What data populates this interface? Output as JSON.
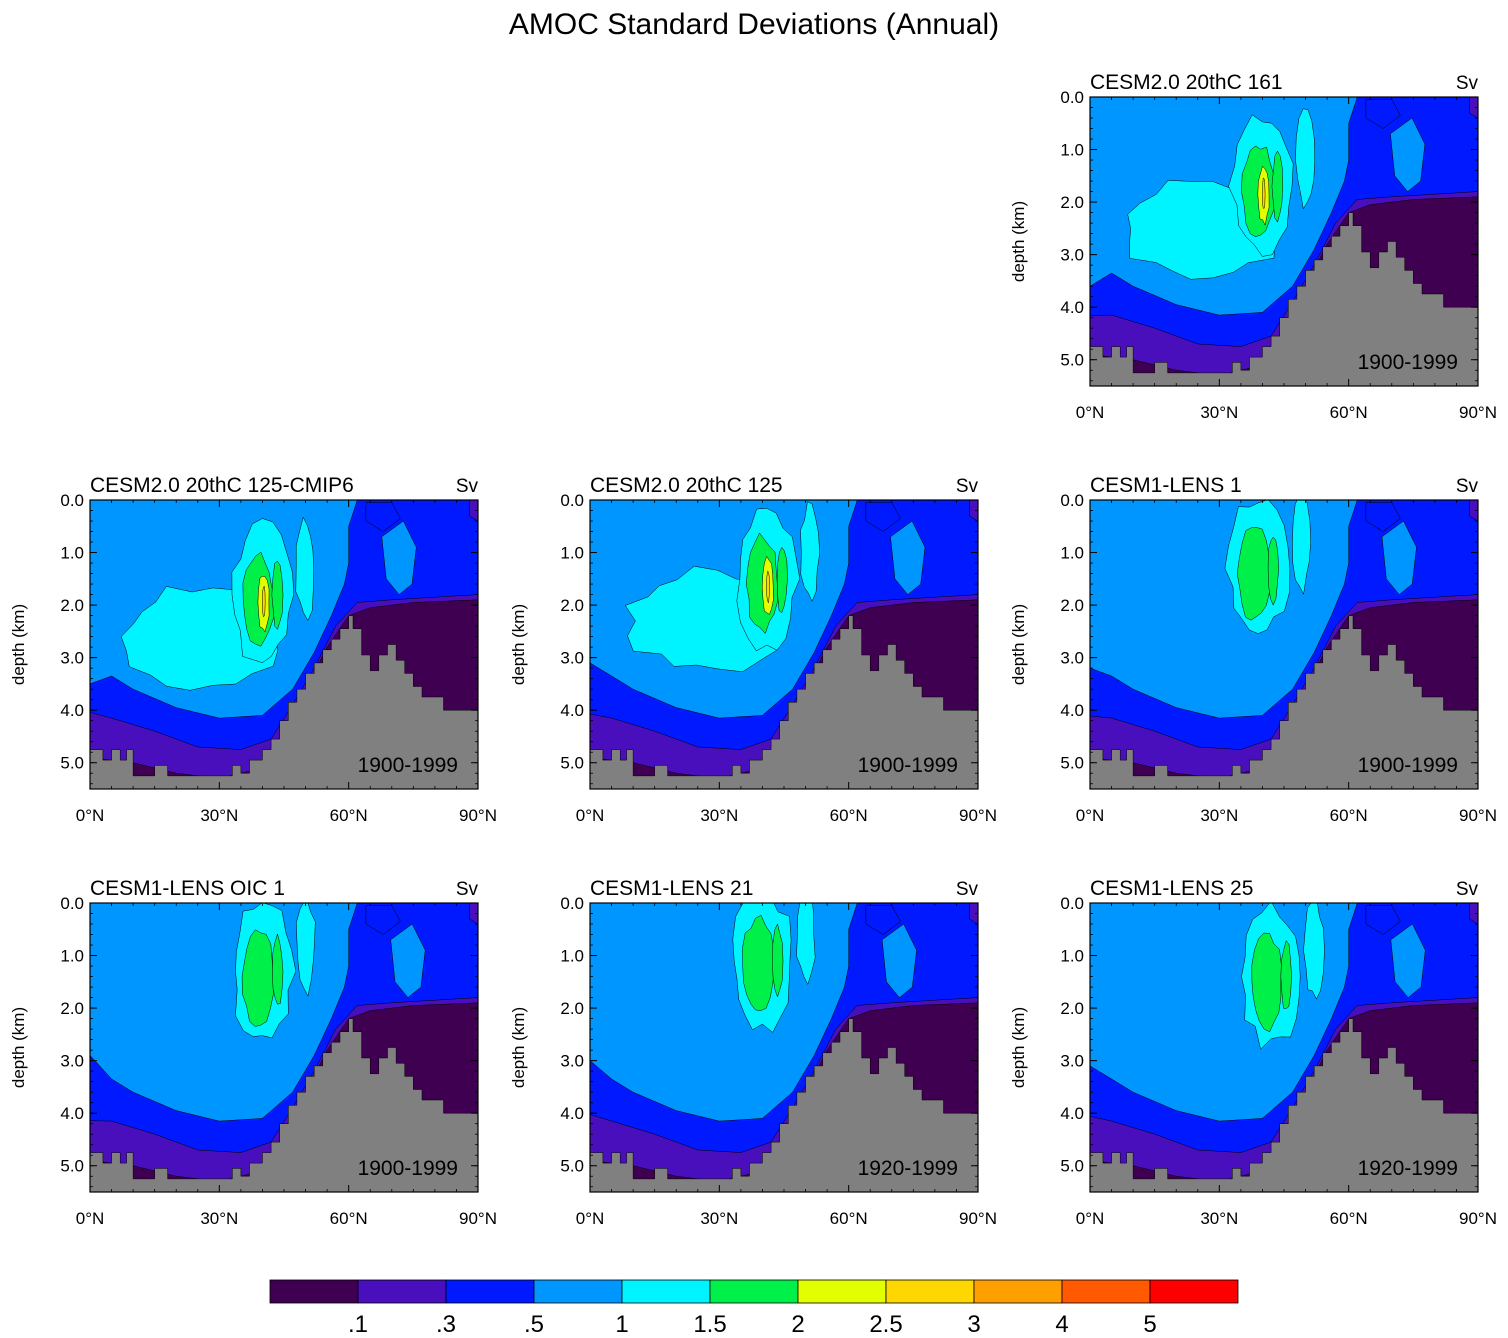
{
  "chart_data": {
    "type": "contour",
    "title": "AMOC Standard Deviations (Annual)",
    "units": "Sv",
    "xlabel": "",
    "ylabel": "depth (km)",
    "xlim": [
      0,
      90
    ],
    "ylim": [
      0,
      5.5
    ],
    "x_ticks": [
      "0°N",
      "30°N",
      "60°N",
      "90°N"
    ],
    "y_ticks": [
      "0.0",
      "1.0",
      "2.0",
      "3.0",
      "4.0",
      "5.0"
    ],
    "colorbar": {
      "levels": [
        ".1",
        ".3",
        ".5",
        "1",
        "1.5",
        "2",
        "2.5",
        "3",
        "4",
        "5"
      ],
      "colors": [
        "#3f0052",
        "#4a0fbd",
        "#0019ff",
        "#0096ff",
        "#00f4ff",
        "#00f04a",
        "#e1ff00",
        "#ffd700",
        "#ffa000",
        "#ff5a00",
        "#ff0000"
      ]
    },
    "land_color": "#808080",
    "panels": [
      {
        "name": "CESM2.0 20thC 161",
        "period": "1900-1999",
        "row": 0,
        "col": 2,
        "peak_lat": 40,
        "peak_depth": 1.8,
        "peak_sd": 2.5
      },
      {
        "name": "CESM2.0 20thC 125-CMIP6",
        "period": "1900-1999",
        "row": 1,
        "col": 0,
        "peak_lat": 40,
        "peak_depth": 1.9,
        "peak_sd": 2.5
      },
      {
        "name": "CESM2.0 20thC 125",
        "period": "1900-1999",
        "row": 1,
        "col": 1,
        "peak_lat": 41,
        "peak_depth": 1.6,
        "peak_sd": 2.5
      },
      {
        "name": "CESM1-LENS 1",
        "period": "1900-1999",
        "row": 1,
        "col": 2,
        "peak_lat": 39,
        "peak_depth": 1.4,
        "peak_sd": 2.0
      },
      {
        "name": "CESM1-LENS OIC 1",
        "period": "1900-1999",
        "row": 2,
        "col": 0,
        "peak_lat": 40,
        "peak_depth": 1.4,
        "peak_sd": 2.0
      },
      {
        "name": "CESM1-LENS 21",
        "period": "1920-1999",
        "row": 2,
        "col": 1,
        "peak_lat": 40,
        "peak_depth": 1.2,
        "peak_sd": 2.0
      },
      {
        "name": "CESM1-LENS 25",
        "period": "1920-1999",
        "row": 2,
        "col": 2,
        "peak_lat": 42,
        "peak_depth": 1.5,
        "peak_sd": 2.0
      }
    ]
  }
}
